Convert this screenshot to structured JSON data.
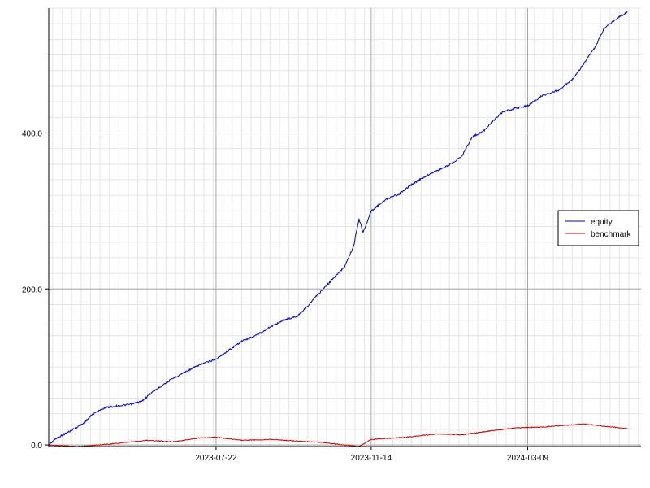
{
  "chart_data": {
    "type": "line",
    "title": "",
    "xlabel": "",
    "ylabel": "",
    "x_range": [
      "2023-03-20",
      "2024-06-01"
    ],
    "ylim": [
      -2,
      560
    ],
    "x_ticks": [
      "2023-07-22",
      "2023-11-14",
      "2024-03-09"
    ],
    "y_ticks": [
      "0.0",
      "200.0",
      "400.0"
    ],
    "y_tick_values": [
      0,
      200,
      400
    ],
    "grid": true,
    "legend_position": "right",
    "series": [
      {
        "name": "equity",
        "color": "#0000cc",
        "points": [
          [
            "2023-03-20",
            0
          ],
          [
            "2023-03-25",
            8
          ],
          [
            "2023-04-05",
            18
          ],
          [
            "2023-04-15",
            28
          ],
          [
            "2023-04-22",
            40
          ],
          [
            "2023-05-01",
            48
          ],
          [
            "2023-05-10",
            50
          ],
          [
            "2023-05-20",
            52
          ],
          [
            "2023-05-28",
            56
          ],
          [
            "2023-06-05",
            68
          ],
          [
            "2023-06-15",
            80
          ],
          [
            "2023-06-25",
            90
          ],
          [
            "2023-07-10",
            103
          ],
          [
            "2023-07-22",
            110
          ],
          [
            "2023-08-01",
            122
          ],
          [
            "2023-08-10",
            133
          ],
          [
            "2023-08-20",
            140
          ],
          [
            "2023-09-01",
            152
          ],
          [
            "2023-09-10",
            160
          ],
          [
            "2023-09-20",
            165
          ],
          [
            "2023-09-28",
            178
          ],
          [
            "2023-10-05",
            192
          ],
          [
            "2023-10-15",
            210
          ],
          [
            "2023-10-25",
            228
          ],
          [
            "2023-11-01",
            255
          ],
          [
            "2023-11-08",
            272
          ],
          [
            "2023-11-05",
            290
          ],
          [
            "2023-11-14",
            300
          ],
          [
            "2023-11-25",
            315
          ],
          [
            "2023-12-05",
            322
          ],
          [
            "2023-12-15",
            335
          ],
          [
            "2023-12-28",
            348
          ],
          [
            "2024-01-10",
            358
          ],
          [
            "2024-01-20",
            370
          ],
          [
            "2024-01-28",
            395
          ],
          [
            "2024-02-05",
            402
          ],
          [
            "2024-02-12",
            415
          ],
          [
            "2024-02-20",
            427
          ],
          [
            "2024-03-01",
            432
          ],
          [
            "2024-03-09",
            435
          ],
          [
            "2024-03-20",
            448
          ],
          [
            "2024-04-01",
            455
          ],
          [
            "2024-04-12",
            470
          ],
          [
            "2024-04-20",
            490
          ],
          [
            "2024-04-28",
            510
          ],
          [
            "2024-05-05",
            535
          ],
          [
            "2024-05-15",
            548
          ],
          [
            "2024-05-22",
            555
          ]
        ]
      },
      {
        "name": "benchmark",
        "color": "#cc0000",
        "points": [
          [
            "2023-03-20",
            0
          ],
          [
            "2023-04-10",
            -2
          ],
          [
            "2023-05-10",
            2
          ],
          [
            "2023-06-01",
            6
          ],
          [
            "2023-06-20",
            4
          ],
          [
            "2023-07-10",
            9
          ],
          [
            "2023-07-22",
            10
          ],
          [
            "2023-08-10",
            6
          ],
          [
            "2023-09-01",
            7
          ],
          [
            "2023-09-20",
            5
          ],
          [
            "2023-10-10",
            3
          ],
          [
            "2023-10-25",
            0
          ],
          [
            "2023-11-05",
            -2
          ],
          [
            "2023-11-14",
            7
          ],
          [
            "2023-12-10",
            10
          ],
          [
            "2024-01-01",
            14
          ],
          [
            "2024-01-20",
            13
          ],
          [
            "2024-02-10",
            18
          ],
          [
            "2024-03-01",
            22
          ],
          [
            "2024-03-20",
            23
          ],
          [
            "2024-04-05",
            25
          ],
          [
            "2024-04-20",
            27
          ],
          [
            "2024-05-05",
            24
          ],
          [
            "2024-05-22",
            21
          ]
        ]
      }
    ]
  }
}
